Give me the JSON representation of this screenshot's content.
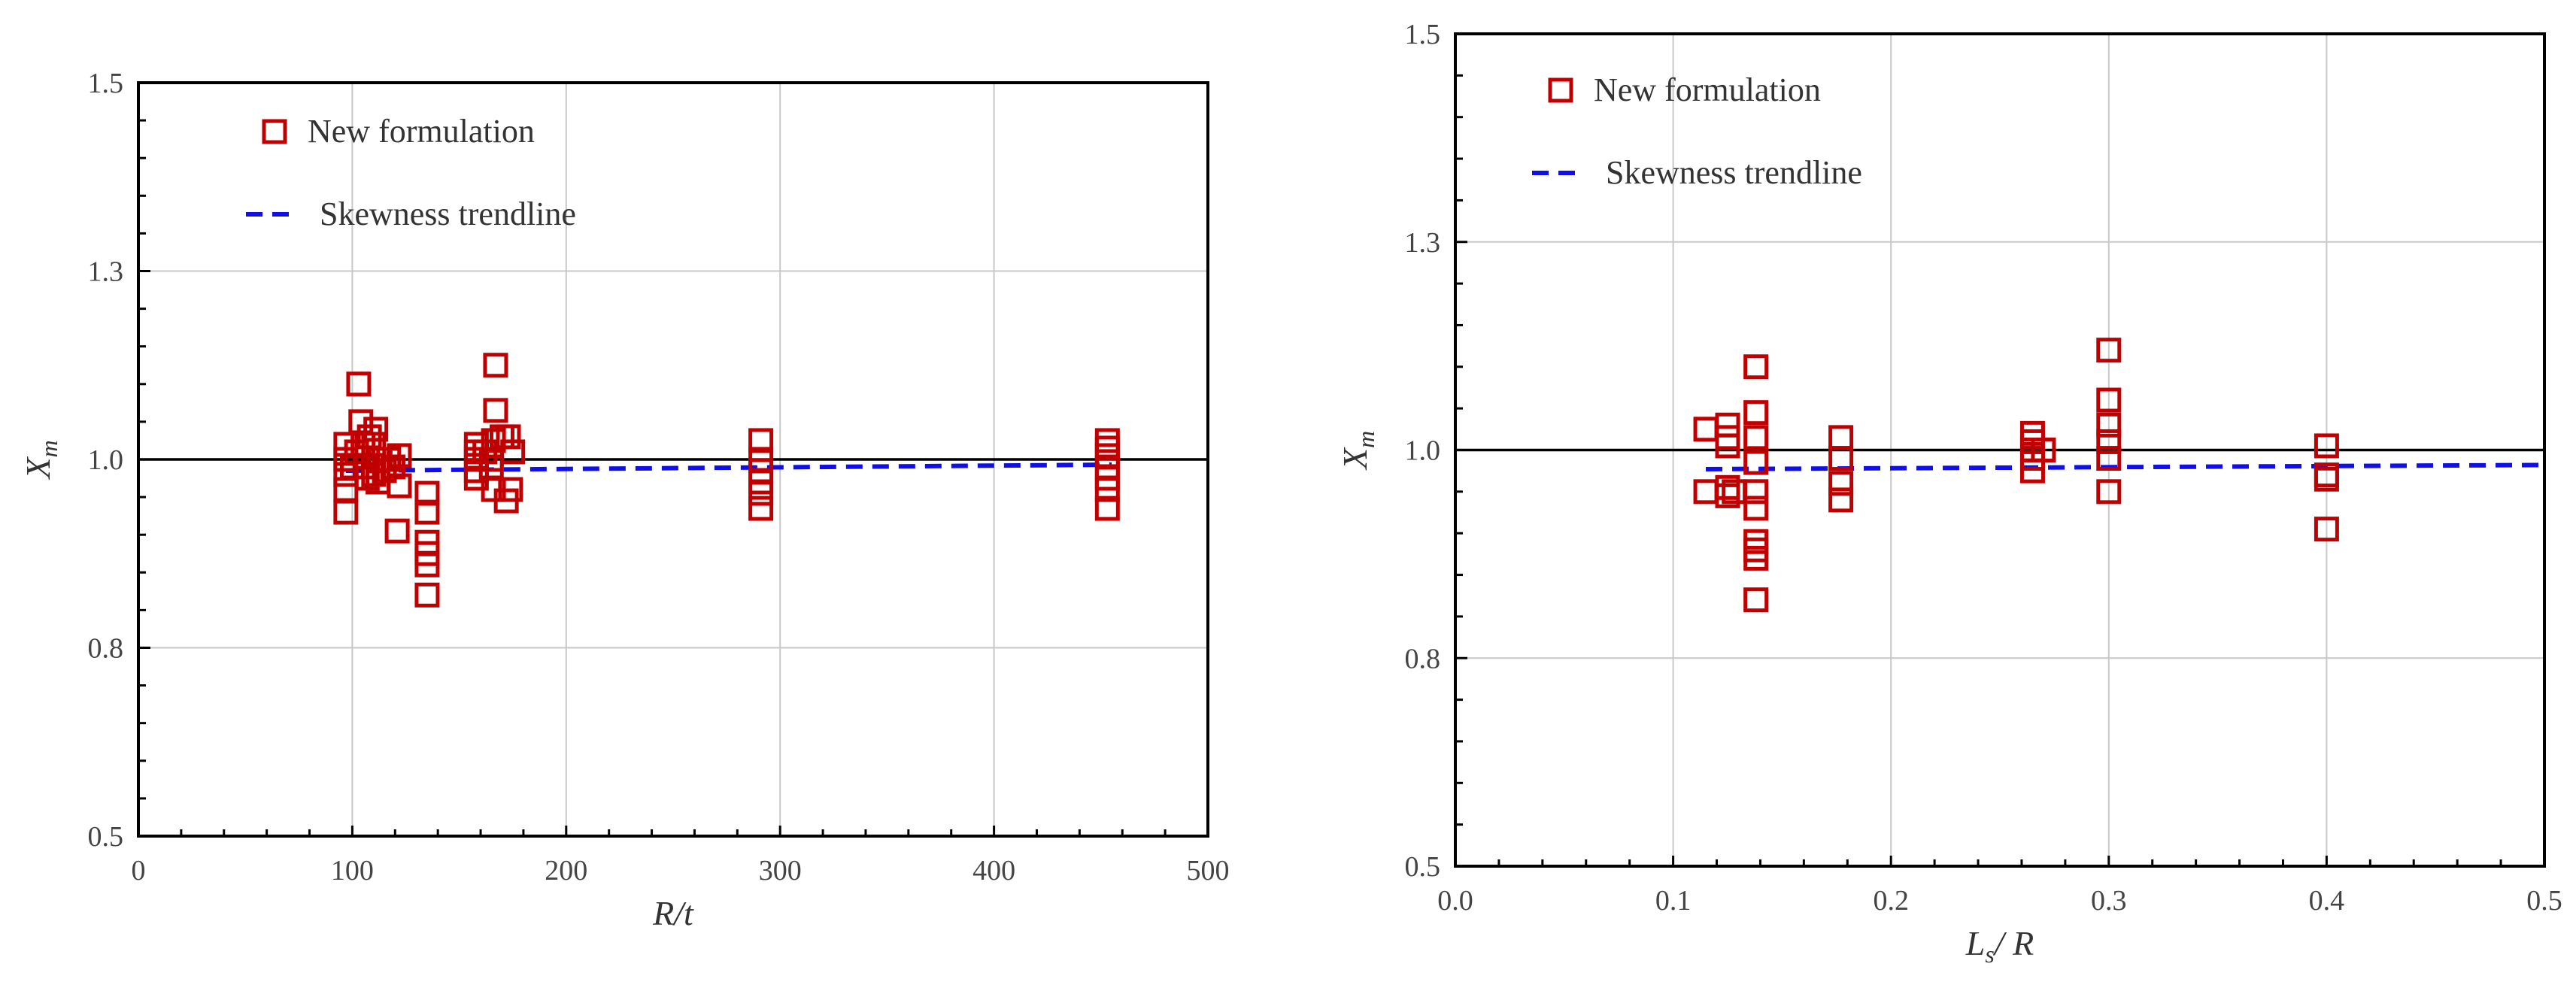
{
  "colors": {
    "marker": "#C00000",
    "trendline": "#1010E6",
    "reference_line": "#000000",
    "grid": "#C8C8C8",
    "axis": "#000000"
  },
  "legend": {
    "marker_label": "New formulation",
    "trend_label": "Skewness trendline"
  },
  "chart_data": [
    {
      "type": "scatter",
      "name": "left",
      "xlabel_main": "R",
      "xlabel_slash": "/",
      "xlabel_sub": "t",
      "ylabel_main": "X",
      "ylabel_sub": "m",
      "xlim": [
        0,
        500
      ],
      "ylim": [
        0.5,
        1.5
      ],
      "x_ticks": [
        0,
        100,
        200,
        300,
        400,
        500
      ],
      "x_tick_labels": [
        "0",
        "100",
        "200",
        "300",
        "400",
        "500"
      ],
      "y_ticks": [
        0.5,
        0.75,
        1.0,
        1.25,
        1.5
      ],
      "y_tick_labels": [
        "0.5",
        "0.8",
        "1.0",
        "1.3",
        "1.5"
      ],
      "reference_y": 1.0,
      "series": [
        {
          "name": "New formulation",
          "points": [
            [
              97,
              0.93
            ],
            [
              97,
              0.96
            ],
            [
              97,
              0.98
            ],
            [
              97,
              1.0
            ],
            [
              97,
              1.02
            ],
            [
              100,
              0.99
            ],
            [
              102,
              1.01
            ],
            [
              103,
              1.1
            ],
            [
              104,
              1.05
            ],
            [
              105,
              1.02
            ],
            [
              106,
              0.99
            ],
            [
              107,
              0.975
            ],
            [
              108,
              1.03
            ],
            [
              110,
              1.02
            ],
            [
              110,
              0.98
            ],
            [
              111,
              1.04
            ],
            [
              112,
              0.97
            ],
            [
              112,
              1.0
            ],
            [
              113,
              1.0
            ],
            [
              115,
              0.985
            ],
            [
              117,
              1.0
            ],
            [
              119,
              0.99
            ],
            [
              121,
              0.905
            ],
            [
              122,
              0.965
            ],
            [
              122,
              1.005
            ],
            [
              135,
              0.955
            ],
            [
              135,
              0.93
            ],
            [
              135,
              0.89
            ],
            [
              135,
              0.875
            ],
            [
              135,
              0.86
            ],
            [
              135,
              0.82
            ],
            [
              158,
              1.02
            ],
            [
              158,
              1.01
            ],
            [
              158,
              1.0
            ],
            [
              158,
              0.985
            ],
            [
              158,
              0.975
            ],
            [
              162,
              1.01
            ],
            [
              165,
              1.0
            ],
            [
              165,
              0.99
            ],
            [
              166,
              0.96
            ],
            [
              166,
              1.025
            ],
            [
              167,
              1.065
            ],
            [
              167,
              1.125
            ],
            [
              170,
              1.03
            ],
            [
              172,
              0.945
            ],
            [
              173,
              1.03
            ],
            [
              174,
              0.96
            ],
            [
              175,
              1.01
            ],
            [
              291,
              1.025
            ],
            [
              291,
              1.0
            ],
            [
              291,
              0.985
            ],
            [
              291,
              0.97
            ],
            [
              291,
              0.955
            ],
            [
              291,
              0.935
            ],
            [
              453,
              1.025
            ],
            [
              453,
              1.015
            ],
            [
              453,
              1.005
            ],
            [
              453,
              0.99
            ],
            [
              453,
              0.975
            ],
            [
              453,
              0.96
            ],
            [
              453,
              0.935
            ]
          ]
        },
        {
          "name": "Skewness trendline",
          "line": [
            [
              97,
              0.985
            ],
            [
              455,
              0.993
            ]
          ]
        }
      ]
    },
    {
      "type": "scatter",
      "name": "right",
      "xlabel_main": "L",
      "xlabel_sub": "s",
      "xlabel_tail": "/ R",
      "ylabel_main": "X",
      "ylabel_sub": "m",
      "xlim": [
        0.0,
        0.5
      ],
      "ylim": [
        0.5,
        1.5
      ],
      "x_ticks": [
        0.0,
        0.1,
        0.2,
        0.3,
        0.4,
        0.5
      ],
      "x_tick_labels": [
        "0.0",
        "0.1",
        "0.2",
        "0.3",
        "0.4",
        "0.5"
      ],
      "y_ticks": [
        0.5,
        0.75,
        1.0,
        1.25,
        1.5
      ],
      "y_tick_labels": [
        "0.5",
        "0.8",
        "1.0",
        "1.3",
        "1.5"
      ],
      "reference_y": 1.0,
      "series": [
        {
          "name": "New formulation",
          "points": [
            [
              0.115,
              1.025
            ],
            [
              0.115,
              0.95
            ],
            [
              0.125,
              1.03
            ],
            [
              0.125,
              1.015
            ],
            [
              0.125,
              1.005
            ],
            [
              0.125,
              0.945
            ],
            [
              0.125,
              0.955
            ],
            [
              0.128,
              0.95
            ],
            [
              0.138,
              1.1
            ],
            [
              0.138,
              1.045
            ],
            [
              0.138,
              1.015
            ],
            [
              0.138,
              0.985
            ],
            [
              0.138,
              0.95
            ],
            [
              0.138,
              0.93
            ],
            [
              0.138,
              0.89
            ],
            [
              0.138,
              0.88
            ],
            [
              0.138,
              0.87
            ],
            [
              0.138,
              0.82
            ],
            [
              0.177,
              1.015
            ],
            [
              0.177,
              0.99
            ],
            [
              0.177,
              0.96
            ],
            [
              0.177,
              0.94
            ],
            [
              0.265,
              1.02
            ],
            [
              0.265,
              1.01
            ],
            [
              0.265,
              1.0
            ],
            [
              0.265,
              0.99
            ],
            [
              0.265,
              0.975
            ],
            [
              0.27,
              1.0
            ],
            [
              0.3,
              1.12
            ],
            [
              0.3,
              1.06
            ],
            [
              0.3,
              1.03
            ],
            [
              0.3,
              1.01
            ],
            [
              0.3,
              0.99
            ],
            [
              0.3,
              0.95
            ],
            [
              0.4,
              1.005
            ],
            [
              0.4,
              0.97
            ],
            [
              0.4,
              0.965
            ],
            [
              0.4,
              0.905
            ]
          ]
        },
        {
          "name": "Skewness trendline",
          "line": [
            [
              0.115,
              0.977
            ],
            [
              0.5,
              0.982
            ]
          ]
        }
      ]
    }
  ]
}
